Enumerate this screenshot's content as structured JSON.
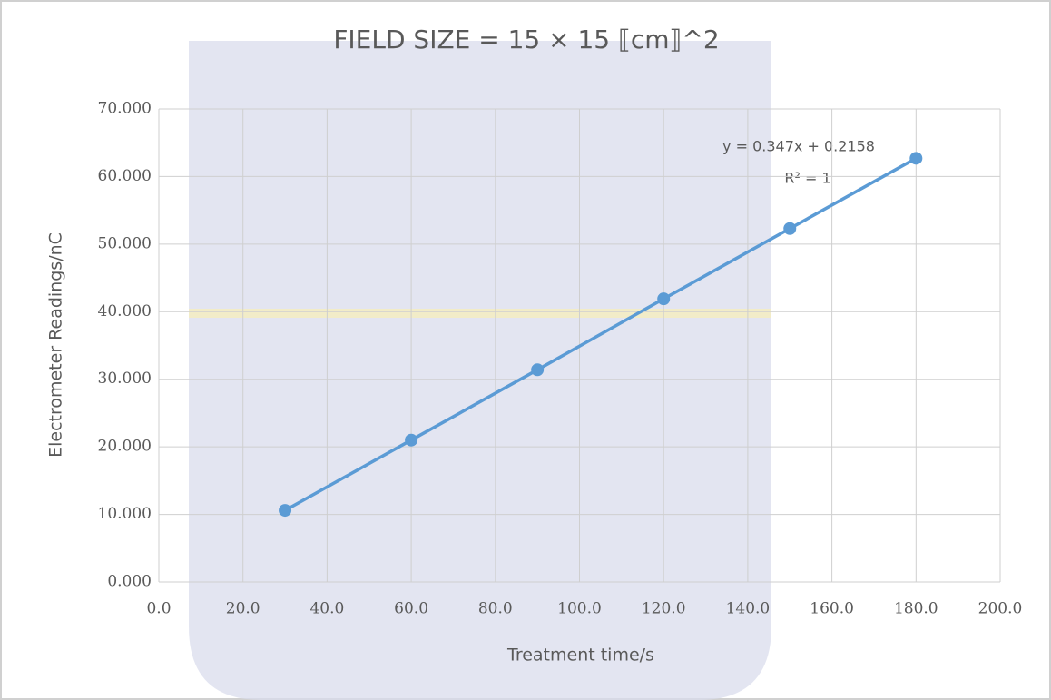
{
  "chart_data": {
    "type": "scatter",
    "title": "FIELD SIZE = 15 × 15 ⟦cm⟧^2",
    "x_label": "Treatment time/s",
    "y_label": "Electrometer Readings/nC",
    "x": [
      30,
      60,
      90,
      120,
      150,
      180
    ],
    "values": [
      10.6,
      21.0,
      31.4,
      41.9,
      52.3,
      62.7
    ],
    "color": "#5b9bd5",
    "trendline": {
      "equation": "y = 0.347x + 0.2158",
      "r_squared": "R² = 1"
    },
    "xlim": [
      0,
      200
    ],
    "xticks": [
      {
        "value": 0,
        "label": "0.0"
      },
      {
        "value": 20,
        "label": "20.0"
      },
      {
        "value": 40,
        "label": "40.0"
      },
      {
        "value": 60,
        "label": "60.0"
      },
      {
        "value": 80,
        "label": "80.0"
      },
      {
        "value": 100,
        "label": "100.0"
      },
      {
        "value": 120,
        "label": "120.0"
      },
      {
        "value": 140,
        "label": "140.0"
      },
      {
        "value": 160,
        "label": "160.0"
      },
      {
        "value": 180,
        "label": "180.0"
      },
      {
        "value": 200,
        "label": "200.0"
      }
    ],
    "ylim": [
      0,
      70
    ],
    "yticks": [
      {
        "value": 0,
        "label": "0.000"
      },
      {
        "value": 10,
        "label": "10.000"
      },
      {
        "value": 20,
        "label": "20.000"
      },
      {
        "value": 30,
        "label": "30.000"
      },
      {
        "value": 40,
        "label": "40.000"
      },
      {
        "value": 50,
        "label": "50.000"
      },
      {
        "value": 60,
        "label": "60.000"
      },
      {
        "value": 70,
        "label": "70.000"
      }
    ],
    "grid": true
  }
}
